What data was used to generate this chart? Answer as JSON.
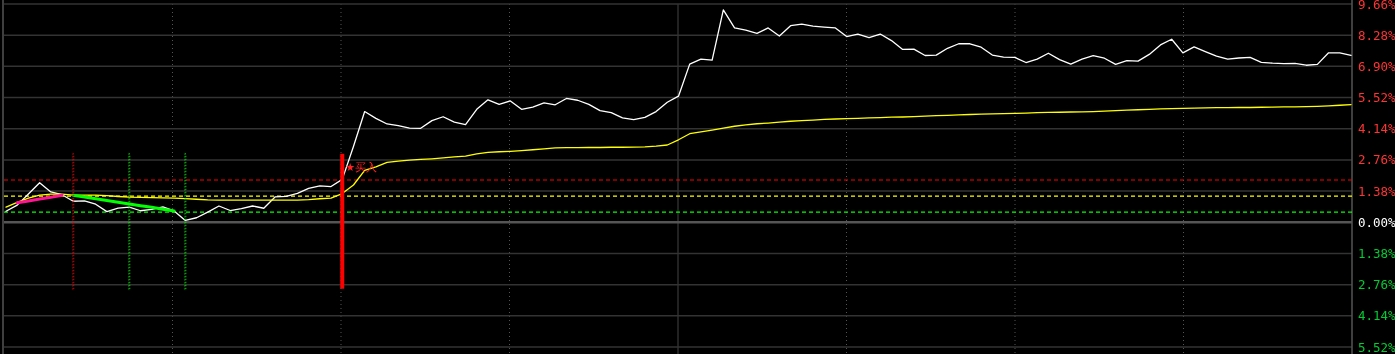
{
  "chart_data": {
    "type": "line",
    "ylim": [
      -5.52,
      9.66
    ],
    "categories": [
      null,
      null,
      null,
      null,
      null,
      null,
      null,
      null,
      null,
      null,
      null,
      null,
      null,
      null,
      null,
      null,
      null,
      null,
      null,
      null,
      null,
      null,
      null,
      null,
      null,
      null,
      null,
      null,
      null,
      null,
      null,
      null,
      null,
      null,
      null,
      null,
      null,
      null,
      null,
      null,
      null,
      null,
      null,
      null,
      null,
      null,
      null,
      null,
      null,
      null,
      null,
      null,
      null,
      null,
      null,
      null,
      null,
      null,
      null,
      null,
      null,
      null,
      null,
      null,
      null,
      null,
      null,
      null,
      null,
      null,
      null,
      null,
      null,
      null,
      null,
      null,
      null,
      null,
      null,
      null,
      null,
      null,
      null,
      null,
      null,
      null,
      null,
      null,
      null,
      null,
      null,
      null,
      null,
      null,
      null,
      null,
      null,
      null,
      null,
      null,
      null,
      null,
      null,
      null,
      null,
      null,
      null,
      null,
      null,
      null,
      null,
      null,
      null,
      null,
      null,
      null,
      null,
      null,
      null,
      null,
      null
    ],
    "yticks": [
      {
        "value": -5.52,
        "label": "5.52%"
      },
      {
        "value": -4.14,
        "label": "4.14%"
      },
      {
        "value": -2.76,
        "label": "2.76%"
      },
      {
        "value": -1.38,
        "label": "1.38%"
      },
      {
        "value": 0,
        "label": "0.00%"
      },
      {
        "value": 1.38,
        "label": "1.38%"
      },
      {
        "value": 2.76,
        "label": "2.76%"
      },
      {
        "value": 4.14,
        "label": "4.14%"
      },
      {
        "value": 5.52,
        "label": "5.52%"
      },
      {
        "value": 6.9,
        "label": "6.90%"
      },
      {
        "value": 8.28,
        "label": "8.28%"
      },
      {
        "value": 9.66,
        "label": "9.66%"
      }
    ],
    "tick_labels": "y",
    "grid": true,
    "marker": "none",
    "line_style": "solid",
    "series": [
      {
        "color": "#ffffff",
        "values": [
          0.49,
          0.76,
          1.25,
          1.75,
          1.34,
          1.22,
          0.93,
          0.95,
          0.8,
          0.47,
          0.63,
          0.67,
          0.51,
          0.57,
          0.68,
          0.5,
          0.08,
          0.2,
          0.45,
          0.72,
          0.52,
          0.6,
          0.72,
          0.62,
          1.12,
          1.15,
          1.28,
          1.5,
          1.61,
          1.58,
          1.9,
          3.35,
          4.9,
          4.6,
          4.35,
          4.28,
          4.17,
          4.16,
          4.5,
          4.67,
          4.43,
          4.32,
          5.0,
          5.42,
          5.22,
          5.37,
          5.0,
          5.1,
          5.28,
          5.2,
          5.48,
          5.4,
          5.22,
          4.94,
          4.85,
          4.62,
          4.54,
          4.64,
          4.9,
          5.31,
          5.58,
          7.0,
          7.22,
          7.18,
          9.4,
          8.6,
          8.5,
          8.36,
          8.6,
          8.24,
          8.7,
          8.77,
          8.68,
          8.64,
          8.6,
          8.22,
          8.33,
          8.17,
          8.33,
          8.04,
          7.65,
          7.66,
          7.38,
          7.4,
          7.7,
          7.9,
          7.9,
          7.75,
          7.4,
          7.31,
          7.3,
          7.07,
          7.22,
          7.48,
          7.2,
          7.0,
          7.22,
          7.37,
          7.26,
          6.99,
          7.15,
          7.13,
          7.43,
          7.85,
          8.1,
          7.5,
          7.76,
          7.55,
          7.35,
          7.22,
          7.27,
          7.3,
          7.08,
          7.04,
          7.02,
          7.03,
          6.95,
          6.99,
          7.5,
          7.5,
          7.39
        ]
      },
      {
        "color": "#ffff00",
        "values": [
          0.67,
          0.88,
          1.07,
          1.2,
          1.25,
          1.25,
          1.2,
          1.2,
          1.2,
          1.18,
          1.14,
          1.11,
          1.1,
          1.09,
          1.08,
          1.07,
          1.05,
          1.02,
          0.99,
          0.98,
          0.98,
          0.98,
          0.98,
          0.98,
          0.98,
          0.98,
          0.98,
          1.0,
          1.04,
          1.07,
          1.27,
          1.65,
          2.3,
          2.45,
          2.65,
          2.71,
          2.75,
          2.78,
          2.81,
          2.85,
          2.89,
          2.93,
          3.03,
          3.09,
          3.12,
          3.14,
          3.17,
          3.21,
          3.25,
          3.29,
          3.3,
          3.3,
          3.31,
          3.31,
          3.32,
          3.32,
          3.33,
          3.34,
          3.37,
          3.42,
          3.65,
          3.92,
          4.0,
          4.08,
          4.17,
          4.25,
          4.31,
          4.36,
          4.39,
          4.43,
          4.47,
          4.5,
          4.52,
          4.55,
          4.57,
          4.59,
          4.6,
          4.62,
          4.63,
          4.65,
          4.66,
          4.68,
          4.7,
          4.72,
          4.73,
          4.75,
          4.77,
          4.79,
          4.8,
          4.81,
          4.82,
          4.83,
          4.85,
          4.86,
          4.87,
          4.88,
          4.89,
          4.9,
          4.92,
          4.94,
          4.96,
          4.98,
          5.0,
          5.02,
          5.03,
          5.04,
          5.05,
          5.06,
          5.07,
          5.07,
          5.08,
          5.08,
          5.09,
          5.1,
          5.11,
          5.11,
          5.12,
          5.13,
          5.15,
          5.18,
          5.21
        ]
      },
      {
        "color": "#ff1493",
        "values": [
          null,
          0.86,
          0.94,
          1.03,
          1.11,
          1.2,
          null,
          null,
          null,
          null,
          null,
          null,
          null,
          null,
          null,
          null,
          null,
          null,
          null,
          null,
          null,
          null,
          null,
          null,
          null,
          null,
          null,
          null,
          null,
          null,
          null,
          null,
          null,
          null,
          null,
          null,
          null,
          null,
          null,
          null,
          null,
          null,
          null,
          null,
          null,
          null,
          null,
          null,
          null,
          null,
          null,
          null,
          null,
          null,
          null,
          null,
          null,
          null,
          null,
          null,
          null,
          null,
          null,
          null,
          null,
          null,
          null,
          null,
          null,
          null,
          null,
          null,
          null,
          null,
          null,
          null,
          null,
          null,
          null,
          null,
          null,
          null,
          null,
          null,
          null,
          null,
          null,
          null,
          null,
          null,
          null,
          null,
          null,
          null,
          null,
          null,
          null,
          null,
          null,
          null,
          null,
          null,
          null,
          null,
          null,
          null,
          null,
          null,
          null,
          null,
          null,
          null,
          null,
          null,
          null,
          null,
          null,
          null,
          null,
          null,
          null
        ]
      },
      {
        "color": "#00ff00",
        "values": [
          null,
          null,
          null,
          null,
          null,
          null,
          1.2,
          1.12,
          1.04,
          0.96,
          0.89,
          0.81,
          0.73,
          0.66,
          0.58,
          0.5,
          null,
          null,
          null,
          null,
          null,
          null,
          null,
          null,
          null,
          null,
          null,
          null,
          null,
          null,
          null,
          null,
          null,
          null,
          null,
          null,
          null,
          null,
          null,
          null,
          null,
          null,
          null,
          null,
          null,
          null,
          null,
          null,
          null,
          null,
          null,
          null,
          null,
          null,
          null,
          null,
          null,
          null,
          null,
          null,
          null,
          null,
          null,
          null,
          null,
          null,
          null,
          null,
          null,
          null,
          null,
          null,
          null,
          null,
          null,
          null,
          null,
          null,
          null,
          null,
          null,
          null,
          null,
          null,
          null,
          null,
          null,
          null,
          null,
          null,
          null,
          null,
          null,
          null,
          null,
          null,
          null,
          null,
          null,
          null,
          null,
          null,
          null,
          null,
          null,
          null,
          null,
          null,
          null,
          null,
          null,
          null,
          null,
          null,
          null,
          null,
          null,
          null,
          null,
          null,
          null
        ]
      },
      {
        "type": "bar",
        "line_style": "dotted",
        "color": "#ff0000",
        "base": [
          null,
          null,
          null,
          null,
          null,
          null,
          -2.98,
          null,
          null,
          null,
          null,
          null,
          null,
          null,
          null,
          null,
          null,
          null,
          null,
          null,
          null,
          null,
          null,
          null,
          null,
          null,
          null,
          null,
          null,
          null,
          null,
          null,
          null,
          null,
          null,
          null,
          null,
          null,
          null,
          null,
          null,
          null,
          null,
          null,
          null,
          null,
          null,
          null,
          null,
          null,
          null,
          null,
          null,
          null,
          null,
          null,
          null,
          null,
          null,
          null,
          null,
          null,
          null,
          null,
          null,
          null,
          null,
          null,
          null,
          null,
          null,
          null,
          null,
          null,
          null,
          null,
          null,
          null,
          null,
          null,
          null,
          null,
          null,
          null,
          null,
          null,
          null,
          null,
          null,
          null,
          null,
          null,
          null,
          null,
          null,
          null,
          null,
          null,
          null,
          null,
          null,
          null,
          null,
          null,
          null,
          null,
          null,
          null,
          null,
          null,
          null,
          null,
          null,
          null,
          null,
          null,
          null,
          null,
          null,
          null,
          null
        ],
        "values": [
          null,
          null,
          null,
          null,
          null,
          null,
          6.01,
          null,
          null,
          null,
          null,
          null,
          null,
          null,
          null,
          null,
          null,
          null,
          null,
          null,
          null,
          null,
          null,
          null,
          null,
          null,
          null,
          null,
          null,
          null,
          null,
          null,
          null,
          null,
          null,
          null,
          null,
          null,
          null,
          null,
          null,
          null,
          null,
          null,
          null,
          null,
          null,
          null,
          null,
          null,
          null,
          null,
          null,
          null,
          null,
          null,
          null,
          null,
          null,
          null,
          null,
          null,
          null,
          null,
          null,
          null,
          null,
          null,
          null,
          null,
          null,
          null,
          null,
          null,
          null,
          null,
          null,
          null,
          null,
          null,
          null,
          null,
          null,
          null,
          null,
          null,
          null,
          null,
          null,
          null,
          null,
          null,
          null,
          null,
          null,
          null,
          null,
          null,
          null,
          null,
          null,
          null,
          null,
          null,
          null,
          null,
          null,
          null,
          null,
          null,
          null,
          null,
          null,
          null,
          null,
          null,
          null,
          null,
          null,
          null,
          null
        ]
      },
      {
        "type": "bar",
        "line_style": "dotted",
        "color": "#00ff00",
        "base": [
          null,
          null,
          null,
          null,
          null,
          null,
          null,
          null,
          null,
          null,
          null,
          -2.98,
          null,
          null,
          null,
          null,
          -2.98,
          null,
          null,
          null,
          null,
          null,
          null,
          null,
          null,
          null,
          null,
          null,
          null,
          null,
          null,
          null,
          null,
          null,
          null,
          null,
          null,
          null,
          null,
          null,
          null,
          null,
          null,
          null,
          null,
          null,
          null,
          null,
          null,
          null,
          null,
          null,
          null,
          null,
          null,
          null,
          null,
          null,
          null,
          null,
          null,
          null,
          null,
          null,
          null,
          null,
          null,
          null,
          null,
          null,
          null,
          null,
          null,
          null,
          null,
          null,
          null,
          null,
          null,
          null,
          null,
          null,
          null,
          null,
          null,
          null,
          null,
          null,
          null,
          null,
          null,
          null,
          null,
          null,
          null,
          null,
          null,
          null,
          null,
          null,
          null,
          null,
          null,
          null,
          null,
          null,
          null,
          null,
          null,
          null,
          null,
          null,
          null,
          null,
          null,
          null,
          null,
          null,
          null,
          null,
          null
        ],
        "values": [
          null,
          null,
          null,
          null,
          null,
          null,
          null,
          null,
          null,
          null,
          null,
          6.01,
          null,
          null,
          null,
          null,
          6.01,
          null,
          null,
          null,
          null,
          null,
          null,
          null,
          null,
          null,
          null,
          null,
          null,
          null,
          null,
          null,
          null,
          null,
          null,
          null,
          null,
          null,
          null,
          null,
          null,
          null,
          null,
          null,
          null,
          null,
          null,
          null,
          null,
          null,
          null,
          null,
          null,
          null,
          null,
          null,
          null,
          null,
          null,
          null,
          null,
          null,
          null,
          null,
          null,
          null,
          null,
          null,
          null,
          null,
          null,
          null,
          null,
          null,
          null,
          null,
          null,
          null,
          null,
          null,
          null,
          null,
          null,
          null,
          null,
          null,
          null,
          null,
          null,
          null,
          null,
          null,
          null,
          null,
          null,
          null,
          null,
          null,
          null,
          null,
          null,
          null,
          null,
          null,
          null,
          null,
          null,
          null,
          null,
          null,
          null,
          null,
          null,
          null,
          null,
          null,
          null,
          null,
          null,
          null,
          null
        ]
      },
      {
        "type": "bar",
        "color": "#ff0000",
        "base": [
          null,
          null,
          null,
          null,
          null,
          null,
          null,
          null,
          null,
          null,
          null,
          null,
          null,
          null,
          null,
          null,
          null,
          null,
          null,
          null,
          null,
          null,
          null,
          null,
          null,
          null,
          null,
          null,
          null,
          null,
          -2.94,
          null,
          null,
          null,
          null,
          null,
          null,
          null,
          null,
          null,
          null,
          null,
          null,
          null,
          null,
          null,
          null,
          null,
          null,
          null,
          null,
          null,
          null,
          null,
          null,
          null,
          null,
          null,
          null,
          null,
          null,
          null,
          null,
          null,
          null,
          null,
          null,
          null,
          null,
          null,
          null,
          null,
          null,
          null,
          null,
          null,
          null,
          null,
          null,
          null,
          null,
          null,
          null,
          null,
          null,
          null,
          null,
          null,
          null,
          null,
          null,
          null,
          null,
          null,
          null,
          null,
          null,
          null,
          null,
          null,
          null,
          null,
          null,
          null,
          null,
          null,
          null,
          null,
          null,
          null,
          null,
          null,
          null,
          null,
          null,
          null,
          null,
          null,
          null,
          null,
          null
        ],
        "values": [
          null,
          null,
          null,
          null,
          null,
          null,
          null,
          null,
          null,
          null,
          null,
          null,
          null,
          null,
          null,
          null,
          null,
          null,
          null,
          null,
          null,
          null,
          null,
          null,
          null,
          null,
          null,
          null,
          null,
          null,
          5.97,
          null,
          null,
          null,
          null,
          null,
          null,
          null,
          null,
          null,
          null,
          null,
          null,
          null,
          null,
          null,
          null,
          null,
          null,
          null,
          null,
          null,
          null,
          null,
          null,
          null,
          null,
          null,
          null,
          null,
          null,
          null,
          null,
          null,
          null,
          null,
          null,
          null,
          null,
          null,
          null,
          null,
          null,
          null,
          null,
          null,
          null,
          null,
          null,
          null,
          null,
          null,
          null,
          null,
          null,
          null,
          null,
          null,
          null,
          null,
          null,
          null,
          null,
          null,
          null,
          null,
          null,
          null,
          null,
          null,
          null,
          null,
          null,
          null,
          null,
          null,
          null,
          null,
          null,
          null,
          null,
          null,
          null,
          null,
          null,
          null,
          null,
          null,
          null,
          null,
          null
        ]
      }
    ],
    "ref_lines": [
      {
        "axis": "y",
        "value": 1.87,
        "color": "#ff0000",
        "line_style": "dashed"
      },
      {
        "axis": "y",
        "value": 1.16,
        "color": "#ffff00",
        "line_style": "dashed"
      },
      {
        "axis": "y",
        "value": 0.45,
        "color": "#00ff00",
        "line_style": "dashed"
      }
    ],
    "annotations": [
      {
        "text": "★买入",
        "y": 2.45
      }
    ]
  }
}
